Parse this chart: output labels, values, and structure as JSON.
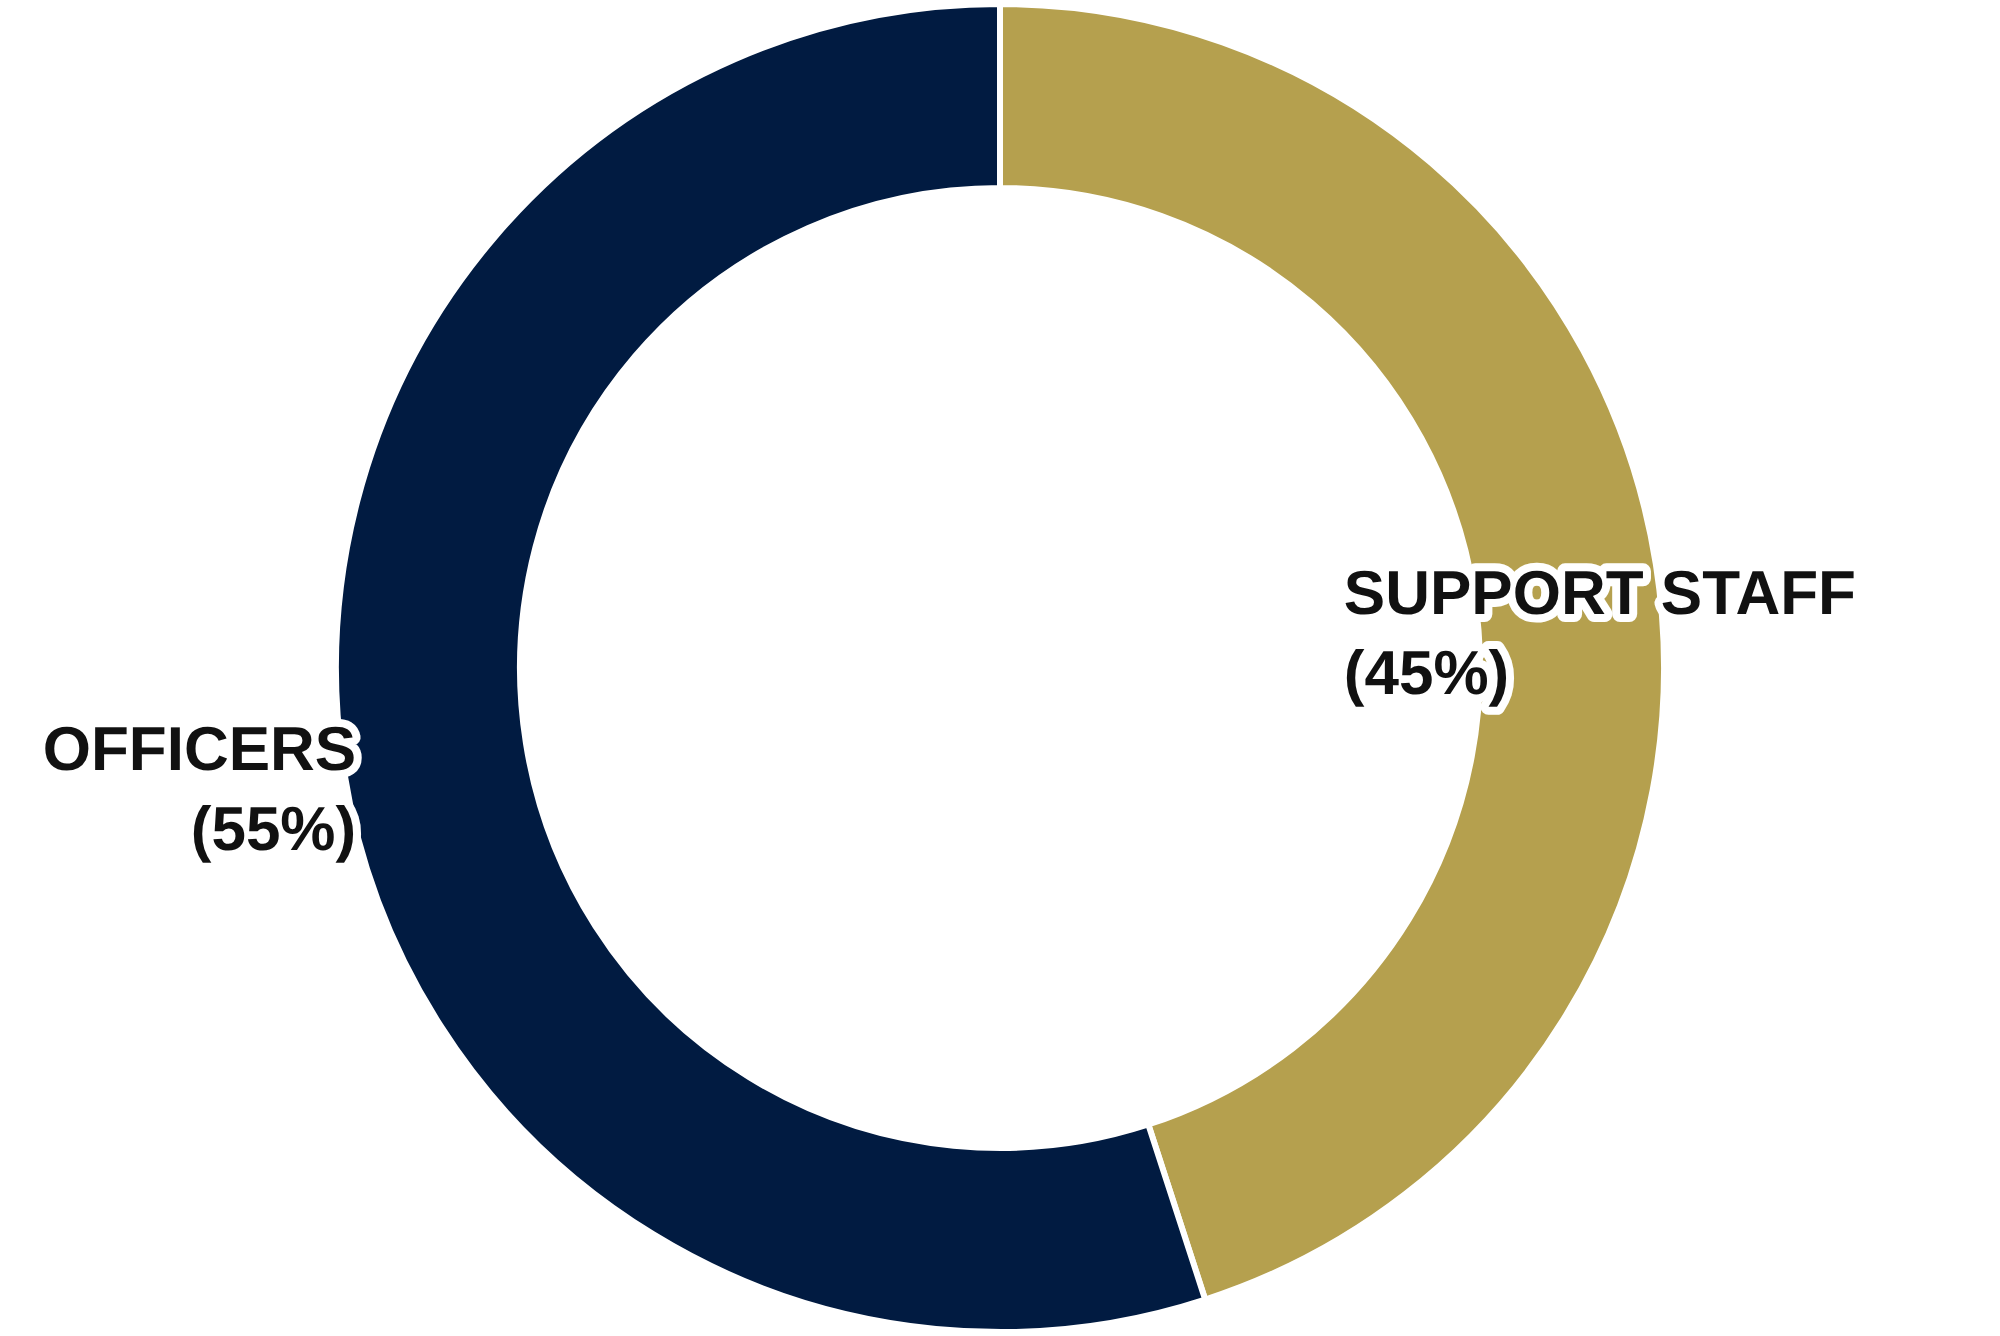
{
  "chart_data": {
    "type": "donut",
    "categories": [
      "SUPPORT STAFF",
      "OFFICERS"
    ],
    "values": [
      45,
      55
    ],
    "colors": [
      "#b5a04e",
      "#011b41"
    ],
    "value_labels": [
      "(45%)",
      "(55%)"
    ]
  }
}
